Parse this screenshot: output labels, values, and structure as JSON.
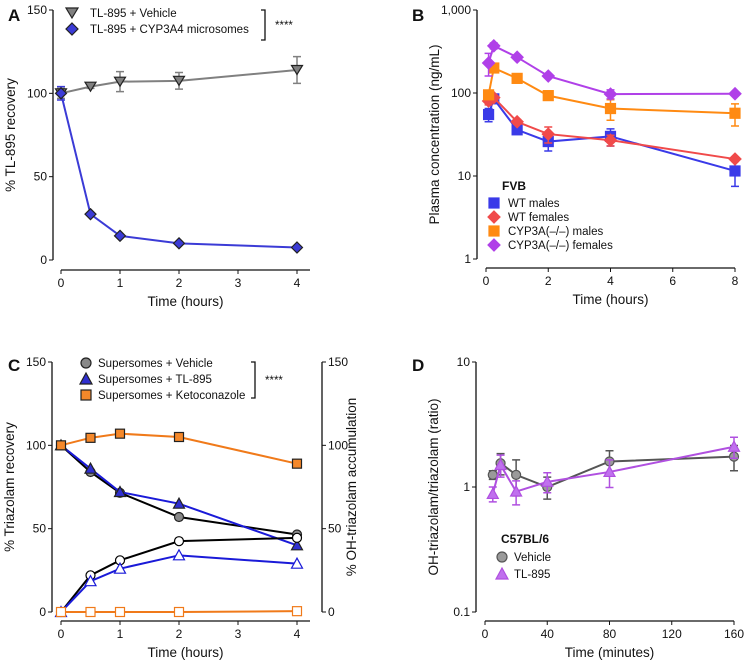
{
  "chart_data": [
    {
      "panel": "A",
      "type": "line",
      "xlabel": "Time (hours)",
      "ylabel": "% TL-895 recovery",
      "xlim": [
        0,
        4
      ],
      "ylim": [
        0,
        150
      ],
      "yscale": "linear",
      "xticks": [
        "0",
        "1",
        "2",
        "3",
        "4"
      ],
      "yticks": [
        "0",
        "50",
        "100",
        "150"
      ],
      "significance": "****",
      "legend_placement": "top",
      "series": [
        {
          "name": "TL-895 + Vehicle",
          "color": "#808080",
          "marker": "triangle-down",
          "filled": true,
          "x": [
            0,
            0.5,
            1,
            2,
            4
          ],
          "y": [
            100,
            104,
            107,
            107.5,
            114
          ],
          "err": [
            3,
            1,
            6,
            5,
            8
          ]
        },
        {
          "name": "TL-895 + CYP3A4 microsomes",
          "color": "#3b3bd6",
          "marker": "diamond",
          "filled": true,
          "x": [
            0,
            0.5,
            1,
            2,
            4
          ],
          "y": [
            100,
            27.5,
            14.5,
            10,
            7.5
          ],
          "err": [
            4,
            0,
            0,
            0,
            0
          ]
        }
      ]
    },
    {
      "panel": "B",
      "type": "line",
      "xlabel": "Time (hours)",
      "ylabel": "Plasma concentration (ng/mL)",
      "xlim": [
        0,
        8
      ],
      "ylim": [
        1,
        1000
      ],
      "yscale": "log",
      "xticks": [
        "0",
        "2",
        "4",
        "6",
        "8"
      ],
      "yticks": [
        "1",
        "10",
        "100",
        "1,000"
      ],
      "legend_title": "FVB",
      "legend_placement": "bottom-left",
      "series": [
        {
          "name": "WT males",
          "color": "#3a3ae8",
          "marker": "square",
          "filled": true,
          "x": [
            0.083,
            0.25,
            1,
            2,
            4,
            8
          ],
          "y": [
            55,
            85,
            36,
            26,
            30,
            11.5
          ],
          "err": [
            10,
            8,
            3,
            6,
            7,
            4
          ]
        },
        {
          "name": "WT females",
          "color": "#f04a4a",
          "marker": "diamond",
          "filled": true,
          "x": [
            0.083,
            0.25,
            1,
            2,
            4,
            8
          ],
          "y": [
            80,
            88,
            45,
            32,
            27,
            16
          ],
          "err": [
            8,
            6,
            3,
            7,
            4,
            1
          ]
        },
        {
          "name": "CYP3A(–/–) males",
          "color": "#ff8a12",
          "marker": "square",
          "filled": true,
          "x": [
            0.083,
            0.25,
            1,
            2,
            4,
            8
          ],
          "y": [
            95,
            200,
            150,
            93,
            65,
            57
          ],
          "err": [
            10,
            20,
            10,
            8,
            18,
            17
          ]
        },
        {
          "name": "CYP3A(–/–) females",
          "color": "#b040e8",
          "marker": "diamond",
          "filled": true,
          "x": [
            0.083,
            0.25,
            1,
            2,
            4,
            8
          ],
          "y": [
            230,
            370,
            270,
            160,
            97,
            98
          ],
          "err": [
            70,
            30,
            10,
            8,
            12,
            3
          ]
        }
      ]
    },
    {
      "panel": "C",
      "type": "line",
      "xlabel": "Time (hours)",
      "ylabel": "% Triazolam recovery",
      "y2label": "% OH-triazolam accumulation",
      "xlim": [
        0,
        4
      ],
      "ylim": [
        0,
        150
      ],
      "y2lim": [
        0,
        150
      ],
      "yscale": "linear",
      "xticks": [
        "0",
        "1",
        "2",
        "3",
        "4"
      ],
      "yticks": [
        "0",
        "50",
        "100",
        "150"
      ],
      "y2ticks": [
        "0",
        "50",
        "100",
        "150"
      ],
      "significance": "****",
      "legend_placement": "top",
      "series": [
        {
          "name": "Supersomes + Vehicle",
          "color": "#000000",
          "fillcolor": "#888888",
          "marker": "circle",
          "filled": true,
          "x": [
            0,
            0.5,
            1,
            2,
            4
          ],
          "y": [
            100,
            84,
            71.5,
            57,
            46.5
          ]
        },
        {
          "name": "Supersomes + TL-895",
          "color": "#1a1ad8",
          "fillcolor": "#2f2fd0",
          "marker": "triangle-up",
          "filled": true,
          "x": [
            0,
            0.5,
            1,
            2,
            4
          ],
          "y": [
            100,
            86,
            72,
            65,
            40
          ]
        },
        {
          "name": "Supersomes + Ketoconazole",
          "color": "#f07a1a",
          "fillcolor": "#f5882a",
          "marker": "square",
          "filled": true,
          "x": [
            0,
            0.5,
            1,
            2,
            4
          ],
          "y": [
            100,
            104.5,
            107,
            105,
            89
          ]
        },
        {
          "color": "#000000",
          "marker": "circle",
          "filled": false,
          "axis": "right",
          "x": [
            0,
            0.5,
            1,
            2,
            4
          ],
          "y": [
            0,
            22,
            31,
            42.5,
            44.5
          ]
        },
        {
          "color": "#1a1ad8",
          "marker": "triangle-up",
          "filled": false,
          "axis": "right",
          "x": [
            0,
            0.5,
            1,
            2,
            4
          ],
          "y": [
            0,
            18.5,
            26,
            34,
            29
          ]
        },
        {
          "color": "#f07a1a",
          "marker": "square",
          "filled": false,
          "axis": "right",
          "x": [
            0,
            0.5,
            1,
            2,
            4
          ],
          "y": [
            0,
            0,
            0,
            0,
            0.5
          ]
        }
      ]
    },
    {
      "panel": "D",
      "type": "line",
      "xlabel": "Time (minutes)",
      "ylabel": "OH-triazolam/triazolam (ratio)",
      "xlim": [
        0,
        160
      ],
      "ylim": [
        0.1,
        10
      ],
      "yscale": "log",
      "xticks": [
        "0",
        "40",
        "80",
        "120",
        "160"
      ],
      "yticks": [
        "0.1",
        "1",
        "10"
      ],
      "legend_title": "C57BL/6",
      "legend_placement": "bottom-left",
      "series": [
        {
          "name": "Vehicle",
          "color": "#555555",
          "fillcolor": "#9a9a9a",
          "marker": "circle",
          "filled": true,
          "x": [
            5,
            10,
            20,
            40,
            80,
            160
          ],
          "y": [
            1.25,
            1.55,
            1.25,
            1.0,
            1.6,
            1.75
          ],
          "err": [
            0.1,
            0.3,
            0.4,
            0.2,
            0.35,
            0.4
          ]
        },
        {
          "name": "TL-895",
          "color": "#b050e0",
          "fillcolor": "#c070ee",
          "marker": "triangle-up",
          "filled": true,
          "x": [
            5,
            10,
            20,
            40,
            80,
            160
          ],
          "y": [
            0.88,
            1.5,
            0.92,
            1.1,
            1.32,
            2.1
          ],
          "err": [
            0.12,
            0.3,
            0.2,
            0.2,
            0.33,
            0.4
          ]
        }
      ]
    }
  ]
}
